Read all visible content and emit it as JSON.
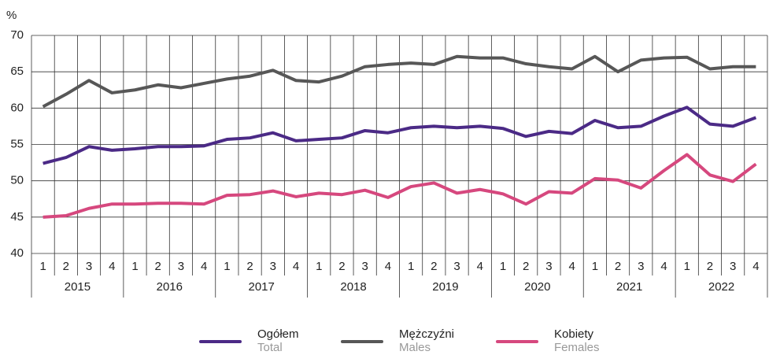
{
  "chart_data": {
    "type": "line",
    "y_label": "%",
    "categories": [
      "1",
      "2",
      "3",
      "4",
      "1",
      "2",
      "3",
      "4",
      "1",
      "2",
      "3",
      "4",
      "1",
      "2",
      "3",
      "4",
      "1",
      "2",
      "3",
      "4",
      "1",
      "2",
      "3",
      "4",
      "1",
      "2",
      "3",
      "4",
      "1",
      "2",
      "3",
      "4"
    ],
    "years": [
      "2015",
      "2016",
      "2017",
      "2018",
      "2019",
      "2020",
      "2021",
      "2022"
    ],
    "ylim": [
      40,
      70
    ],
    "yticks": [
      40,
      45,
      50,
      55,
      60,
      65,
      70
    ],
    "grid": true,
    "series": [
      {
        "name": "Ogółem",
        "name_en": "Total",
        "color": "#4b2a86",
        "values": [
          52.4,
          53.2,
          54.7,
          54.2,
          54.4,
          54.7,
          54.7,
          54.8,
          55.7,
          55.9,
          56.6,
          55.5,
          55.7,
          55.9,
          56.9,
          56.6,
          57.3,
          57.5,
          57.3,
          57.5,
          57.2,
          56.1,
          56.8,
          56.5,
          58.3,
          57.3,
          57.5,
          58.9,
          60.1,
          57.8,
          57.5,
          58.7
        ]
      },
      {
        "name": "Mężczyźni",
        "name_en": "Males",
        "color": "#575757",
        "values": [
          60.2,
          61.9,
          63.8,
          62.1,
          62.5,
          63.2,
          62.8,
          63.4,
          64.0,
          64.4,
          65.2,
          63.8,
          63.6,
          64.4,
          65.7,
          66.0,
          66.2,
          66.0,
          67.1,
          66.9,
          66.9,
          66.1,
          65.7,
          65.4,
          67.1,
          65.0,
          66.6,
          66.9,
          67.0,
          65.4,
          65.7,
          65.7
        ]
      },
      {
        "name": "Kobiety",
        "name_en": "Females",
        "color": "#d6487e",
        "values": [
          45.0,
          45.2,
          46.2,
          46.8,
          46.8,
          46.9,
          46.9,
          46.8,
          48.0,
          48.1,
          48.6,
          47.8,
          48.3,
          48.1,
          48.7,
          47.7,
          49.2,
          49.7,
          48.3,
          48.8,
          48.2,
          46.8,
          48.5,
          48.3,
          50.3,
          50.1,
          49.0,
          51.4,
          53.6,
          50.8,
          49.9,
          52.3
        ]
      }
    ]
  }
}
